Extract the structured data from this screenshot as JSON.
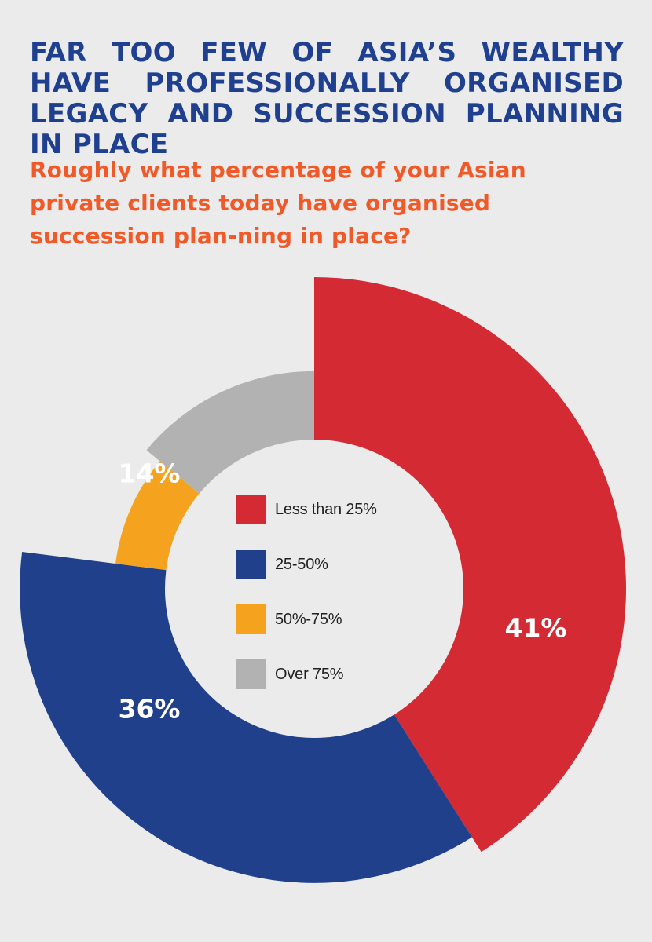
{
  "header": {
    "title": "FAR TOO FEW OF ASIA’S WEALTHY HAVE PROFESSIONALLY ORGANISED LEGACY AND SUCCESSION PLANNING IN PLACE",
    "subtitle": "Roughly what percentage of your Asian private clients today have organised succession plan-ning in place?"
  },
  "chart_data": {
    "type": "pie",
    "variant": "radial-donut",
    "legend_position": "center",
    "slices": [
      {
        "label": "Less than 25%",
        "value": 41,
        "display": "41%",
        "color": "#d42a33"
      },
      {
        "label": "25-50%",
        "value": 36,
        "display": "36%",
        "color": "#20408c"
      },
      {
        "label": "50%-75%",
        "value": 9,
        "display": "9%",
        "color": "#f5a31f"
      },
      {
        "label": "Over 75%",
        "value": 14,
        "display": "14%",
        "color": "#b2b2b2"
      }
    ]
  }
}
